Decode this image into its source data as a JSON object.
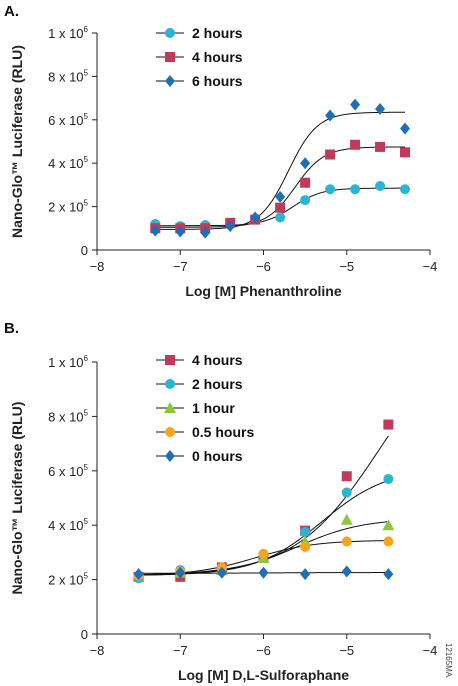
{
  "figure_code": "12165MA",
  "chart_data": [
    {
      "type": "scatter",
      "panel_label": "A.",
      "xlabel": "Log [M] Phenanthroline",
      "ylabel": "Nano-Glo™ Luciferase (RLU)",
      "xlim": [
        -8,
        -4
      ],
      "ylim": [
        0,
        1000000
      ],
      "xticks": [
        -8,
        -7,
        -6,
        -5,
        -4
      ],
      "xtick_labels": [
        "−8",
        "−7",
        "−6",
        "−5",
        "−4"
      ],
      "yticks": [
        0,
        200000,
        400000,
        600000,
        800000,
        1000000
      ],
      "ytick_mantissa": [
        "0",
        "2 x 10",
        "4 x 10",
        "6 x 10",
        "8 x 10",
        "1 x 10"
      ],
      "ytick_exponent": [
        "",
        "5",
        "5",
        "5",
        "5",
        "6"
      ],
      "legend_position": "top-left",
      "fit": "sigmoid",
      "series": [
        {
          "name": "2 hours",
          "color": "#29B5D3",
          "marker": "circle",
          "x": [
            -7.3,
            -7.0,
            -6.7,
            -6.4,
            -6.1,
            -5.8,
            -5.5,
            -5.2,
            -4.9,
            -4.6,
            -4.3
          ],
          "y": [
            120000,
            110000,
            115000,
            120000,
            140000,
            150000,
            230000,
            280000,
            280000,
            295000,
            280000
          ],
          "fit_params": {
            "bottom": 112000,
            "top": 285000,
            "ec50": -5.65,
            "hill": 2.5
          }
        },
        {
          "name": "4 hours",
          "color": "#C23A5A",
          "marker": "square",
          "x": [
            -7.3,
            -7.0,
            -6.7,
            -6.4,
            -6.1,
            -5.8,
            -5.5,
            -5.2,
            -4.9,
            -4.6,
            -4.3
          ],
          "y": [
            100000,
            100000,
            100000,
            125000,
            140000,
            195000,
            310000,
            440000,
            485000,
            475000,
            450000
          ],
          "fit_params": {
            "bottom": 105000,
            "top": 475000,
            "ec50": -5.62,
            "hill": 2.5
          }
        },
        {
          "name": "6 hours",
          "color": "#1F6FB4",
          "marker": "diamond",
          "x": [
            -7.3,
            -7.0,
            -6.7,
            -6.4,
            -6.1,
            -5.8,
            -5.5,
            -5.2,
            -4.9,
            -4.6,
            -4.3
          ],
          "y": [
            90000,
            85000,
            80000,
            110000,
            150000,
            245000,
            400000,
            620000,
            670000,
            650000,
            560000
          ],
          "fit_params": {
            "bottom": 95000,
            "top": 635000,
            "ec50": -5.7,
            "hill": 2.5
          }
        }
      ]
    },
    {
      "type": "scatter",
      "panel_label": "B.",
      "xlabel": "Log [M] D,L-Sulforaphane",
      "ylabel": "Nano-Glo™ Luciferase (RLU)",
      "xlim": [
        -8,
        -4
      ],
      "ylim": [
        0,
        1000000
      ],
      "xticks": [
        -8,
        -7,
        -6,
        -5,
        -4
      ],
      "xtick_labels": [
        "−8",
        "−7",
        "−6",
        "−5",
        "−4"
      ],
      "yticks": [
        0,
        200000,
        400000,
        600000,
        800000,
        1000000
      ],
      "ytick_mantissa": [
        "0",
        "2 x 10",
        "4 x 10",
        "6 x 10",
        "8 x 10",
        "1 x 10"
      ],
      "ytick_exponent": [
        "",
        "5",
        "5",
        "5",
        "5",
        "6"
      ],
      "legend_position": "top-left",
      "fit": "sigmoid",
      "series": [
        {
          "name": "4 hours",
          "color": "#C23A5A",
          "marker": "square",
          "x": [
            -7.5,
            -7.0,
            -6.5,
            -6.0,
            -5.5,
            -5.0,
            -4.5
          ],
          "y": [
            210000,
            210000,
            245000,
            280000,
            380000,
            580000,
            770000
          ],
          "fit_params": {
            "bottom": 215000,
            "top": 1150000,
            "ec50": -4.6,
            "hill": 0.85
          }
        },
        {
          "name": "2 hours",
          "color": "#29B5D3",
          "marker": "circle",
          "x": [
            -7.5,
            -7.0,
            -6.5,
            -6.0,
            -5.5,
            -5.0,
            -4.5
          ],
          "y": [
            205000,
            235000,
            240000,
            290000,
            375000,
            520000,
            570000
          ],
          "fit_params": {
            "bottom": 215000,
            "top": 610000,
            "ec50": -5.3,
            "hill": 1.1
          }
        },
        {
          "name": "1 hour",
          "color": "#8DC63F",
          "marker": "triangle",
          "x": [
            -7.5,
            -7.0,
            -6.5,
            -6.0,
            -5.5,
            -5.0,
            -4.5
          ],
          "y": [
            220000,
            225000,
            235000,
            280000,
            340000,
            420000,
            400000
          ],
          "fit_params": {
            "bottom": 215000,
            "top": 425000,
            "ec50": -5.6,
            "hill": 1.1
          }
        },
        {
          "name": "0.5 hours",
          "color": "#F7A51C",
          "marker": "circle",
          "x": [
            -7.5,
            -7.0,
            -6.5,
            -6.0,
            -5.5,
            -5.0,
            -4.5
          ],
          "y": [
            215000,
            230000,
            245000,
            295000,
            320000,
            340000,
            340000
          ],
          "fit_params": {
            "bottom": 215000,
            "top": 345000,
            "ec50": -6.1,
            "hill": 1.2
          }
        },
        {
          "name": "0 hours",
          "color": "#1F6FB4",
          "marker": "diamond",
          "x": [
            -7.5,
            -7.0,
            -6.5,
            -6.0,
            -5.5,
            -5.0,
            -4.5
          ],
          "y": [
            220000,
            225000,
            225000,
            225000,
            220000,
            230000,
            220000
          ],
          "fit_params": {
            "bottom": 223000,
            "top": 226000,
            "ec50": -6.0,
            "hill": 1.0
          }
        }
      ]
    }
  ]
}
